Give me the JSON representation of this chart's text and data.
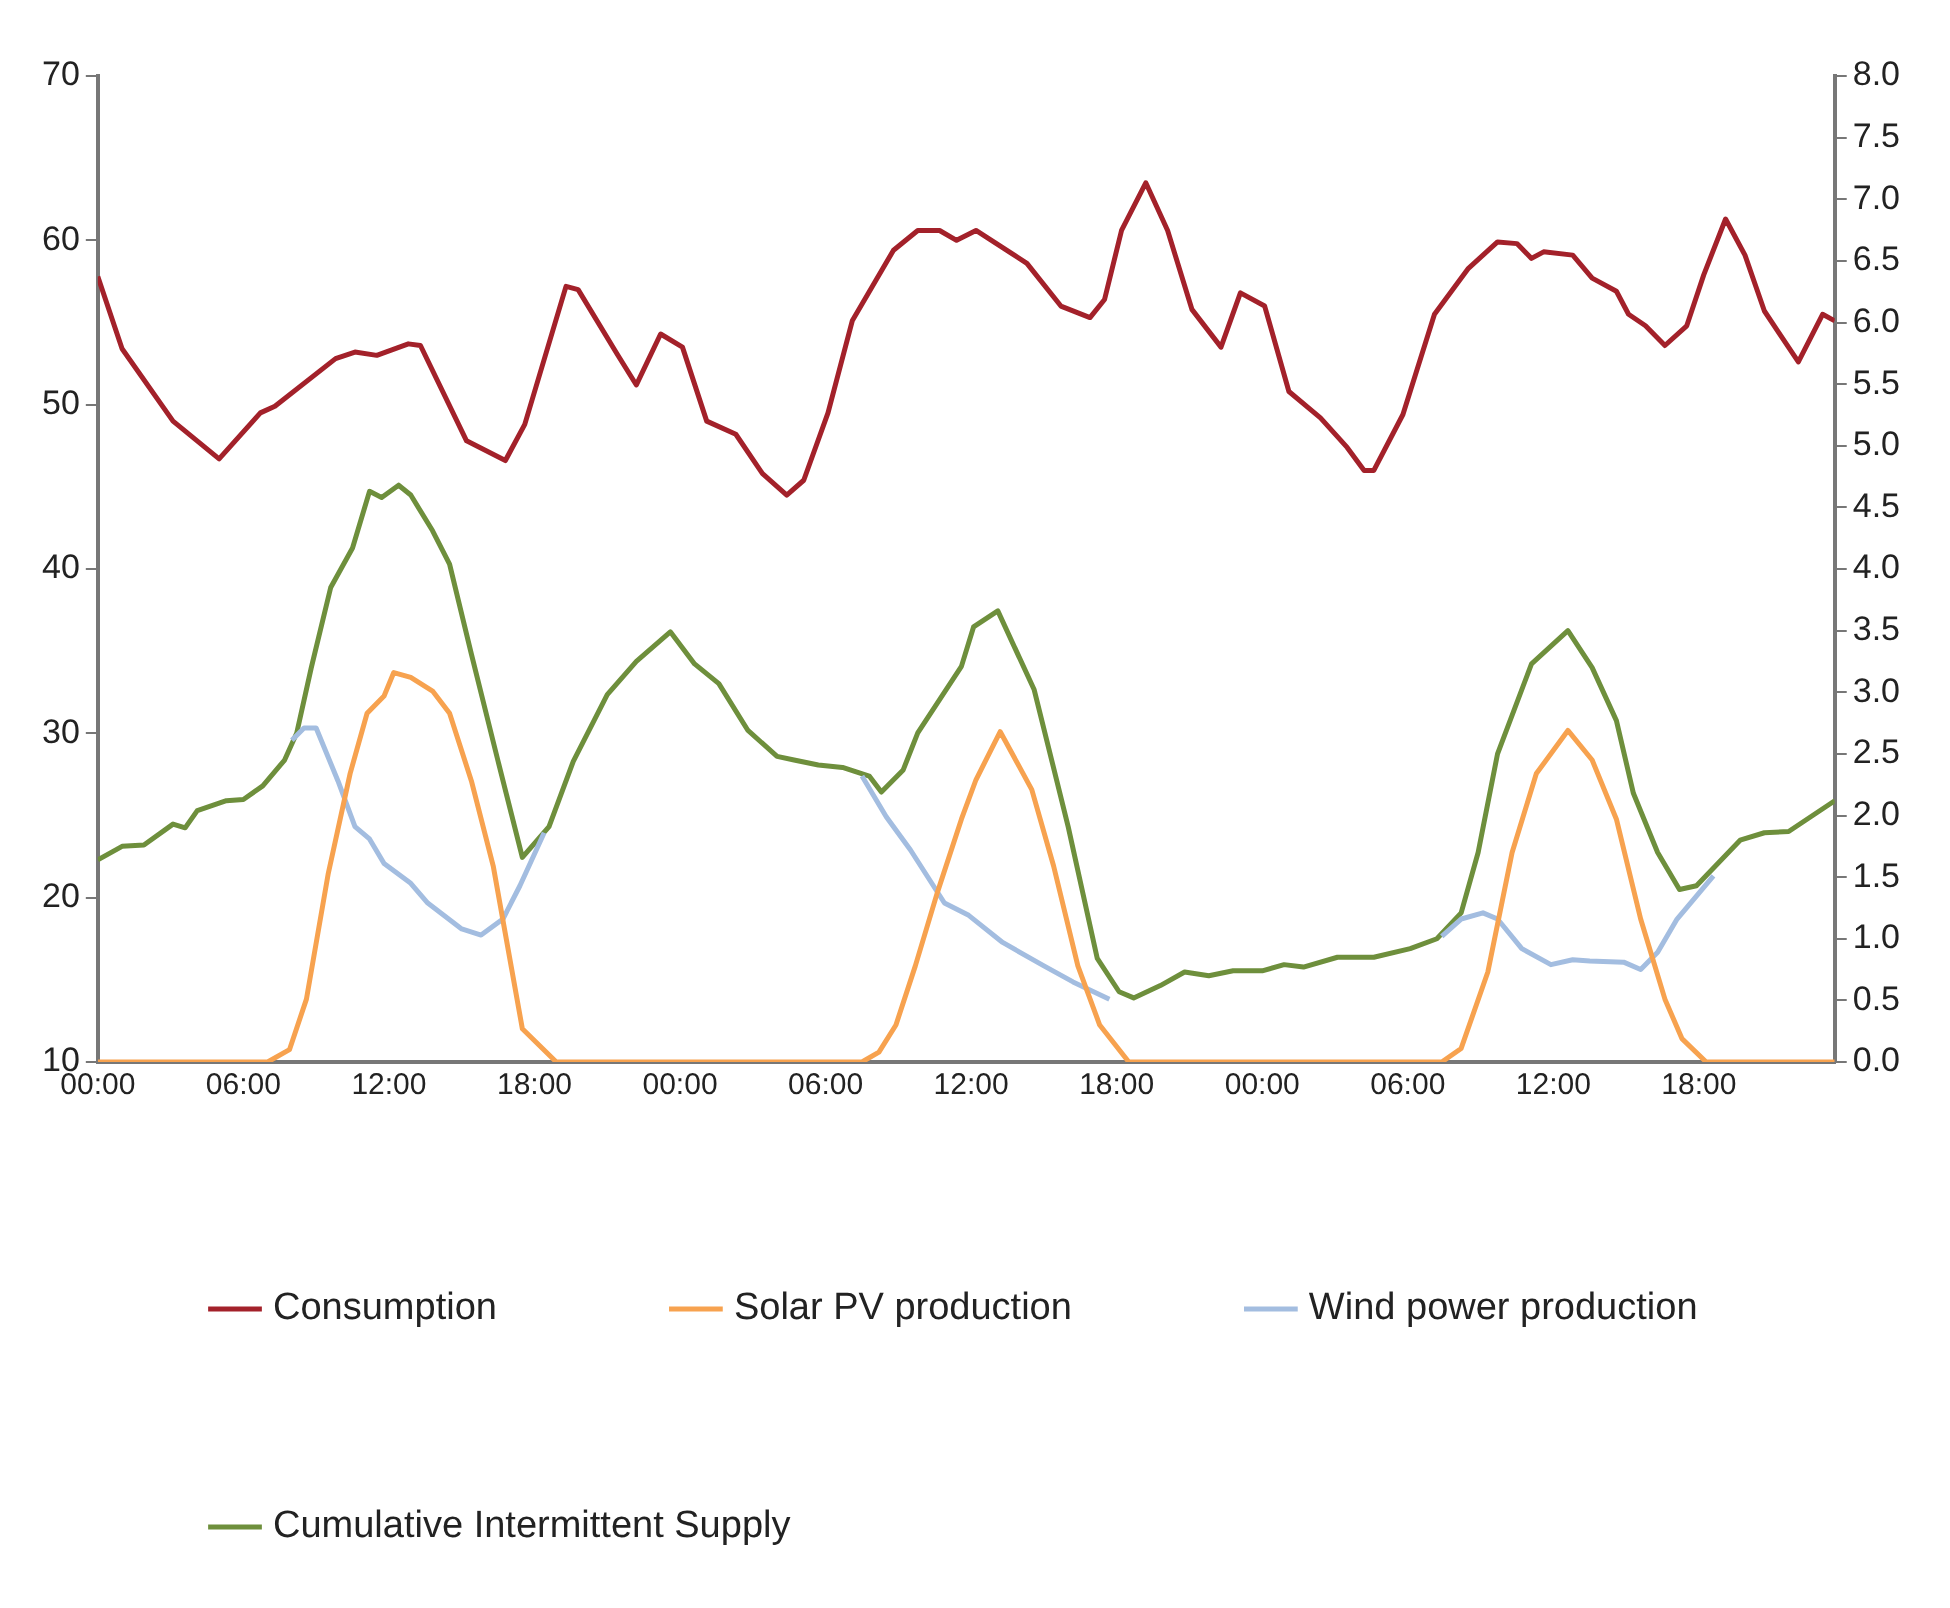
{
  "chart_data": {
    "type": "line",
    "legend": "bottom left",
    "marker": "none",
    "line_style": "solid",
    "grid": false,
    "xlim": [
      "--01-01T00:00",
      "--01-03T23:36"
    ],
    "xticks": [
      {
        "value": "--01-01T00:00",
        "label": "00:00"
      },
      {
        "value": "--01-01T06:00",
        "label": "06:00"
      },
      {
        "value": "--01-01T12:00",
        "label": "12:00"
      },
      {
        "value": "--01-01T18:00",
        "label": "18:00"
      },
      {
        "value": "--01-02T00:00",
        "label": "00:00"
      },
      {
        "value": "--01-02T06:00",
        "label": "06:00"
      },
      {
        "value": "--01-02T12:00",
        "label": "12:00"
      },
      {
        "value": "--01-02T18:00",
        "label": "18:00"
      },
      {
        "value": "--01-03T00:00",
        "label": "00:00"
      },
      {
        "value": "--01-03T06:00",
        "label": "06:00"
      },
      {
        "value": "--01-03T12:00",
        "label": "12:00"
      },
      {
        "value": "--01-03T18:00",
        "label": "18:00"
      }
    ],
    "ylim": [
      10,
      70
    ],
    "yticks": [
      10,
      20,
      30,
      40,
      50,
      60,
      70
    ],
    "y2lim": [
      0,
      8
    ],
    "y2ticks": [
      {
        "value": 0,
        "label": "0.0"
      },
      {
        "value": 0.5,
        "label": "0.5"
      },
      {
        "value": 1,
        "label": "1.0"
      },
      {
        "value": 1.5,
        "label": "1.5"
      },
      {
        "value": 2,
        "label": "2.0"
      },
      {
        "value": 2.5,
        "label": "2.5"
      },
      {
        "value": 3,
        "label": "3.0"
      },
      {
        "value": 3.5,
        "label": "3.5"
      },
      {
        "value": 4,
        "label": "4.0"
      },
      {
        "value": 4.5,
        "label": "4.5"
      },
      {
        "value": 5,
        "label": "5.0"
      },
      {
        "value": 5.5,
        "label": "5.5"
      },
      {
        "value": 6,
        "label": "6.0"
      },
      {
        "value": 6.5,
        "label": "6.5"
      },
      {
        "value": 7,
        "label": "7.0"
      },
      {
        "value": 7.5,
        "label": "7.5"
      },
      {
        "value": 8,
        "label": "8.0"
      }
    ],
    "series": [
      {
        "name": "Consumption",
        "color": "#a3212a",
        "x": [
          "--01-01T00:00",
          "--01-01T01:00",
          "--01-01T03:06",
          "--01-01T05:00",
          "--01-01T06:42",
          "--01-01T07:18",
          "--01-01T09:48",
          "--01-01T10:36",
          "--01-01T11:30",
          "--01-01T12:48",
          "--01-01T13:18",
          "--01-01T15:12",
          "--01-01T16:48",
          "--01-01T17:36",
          "--01-01T19:18",
          "--01-01T19:48",
          "--01-01T21:24",
          "--01-01T22:12",
          "--01-01T23:12",
          "--01-02T00:06",
          "--01-02T01:06",
          "--01-02T02:18",
          "--01-02T03:24",
          "--01-02T04:24",
          "--01-02T05:06",
          "--01-02T06:06",
          "--01-02T07:06",
          "--01-02T08:48",
          "--01-02T09:48",
          "--01-02T10:42",
          "--01-02T11:24",
          "--01-02T12:12",
          "--01-02T14:18",
          "--01-02T15:42",
          "--01-02T16:54",
          "--01-02T17:30",
          "--01-02T18:12",
          "--01-02T19:12",
          "--01-02T20:06",
          "--01-02T21:06",
          "--01-02T22:18",
          "--01-02T23:06",
          "--01-03T00:06",
          "--01-03T01:06",
          "--01-03T02:24",
          "--01-03T03:30",
          "--01-03T04:12",
          "--01-03T04:36",
          "--01-03T05:48",
          "--01-03T07:06",
          "--01-03T08:30",
          "--01-03T09:42",
          "--01-03T10:30",
          "--01-03T11:06",
          "--01-03T11:36",
          "--01-03T12:48",
          "--01-03T13:36",
          "--01-03T14:36",
          "--01-03T15:06",
          "--01-03T15:48",
          "--01-03T16:36",
          "--01-03T17:30",
          "--01-03T18:12",
          "--01-03T19:06",
          "--01-03T19:54",
          "--01-03T20:42",
          "--01-03T22:06",
          "--01-03T23:06",
          "--01-03T23:36"
        ],
        "values": [
          57.8,
          53.4,
          49.0,
          46.7,
          49.5,
          49.9,
          52.8,
          53.2,
          53.0,
          53.7,
          53.6,
          47.8,
          46.6,
          48.8,
          57.2,
          57.0,
          53.1,
          51.2,
          54.3,
          53.5,
          49.0,
          48.2,
          45.8,
          44.5,
          45.4,
          49.5,
          55.1,
          59.4,
          60.6,
          60.6,
          60.0,
          60.6,
          58.6,
          56.0,
          55.3,
          56.4,
          60.6,
          63.5,
          60.6,
          55.8,
          53.5,
          56.8,
          56.0,
          50.8,
          49.2,
          47.4,
          46.0,
          46.0,
          49.4,
          55.5,
          58.3,
          59.9,
          59.8,
          58.9,
          59.3,
          59.1,
          57.7,
          56.9,
          55.5,
          54.8,
          53.6,
          54.8,
          57.9,
          61.3,
          59.1,
          55.7,
          52.6,
          55.5,
          55.1
        ]
      },
      {
        "name": "Solar PV production",
        "color": "#f7a24f",
        "axis": "y2",
        "x": [
          "--01-01T00:00",
          "--01-01T07:00",
          "--01-01T07:54",
          "--01-01T08:36",
          "--01-01T09:30",
          "--01-01T10:24",
          "--01-01T11:06",
          "--01-01T11:48",
          "--01-01T12:12",
          "--01-01T12:54",
          "--01-01T13:48",
          "--01-01T14:30",
          "--01-01T15:24",
          "--01-01T16:18",
          "--01-01T17:00",
          "--01-01T17:30",
          "--01-01T18:54",
          "--01-02T07:30",
          "--01-02T08:12",
          "--01-02T08:54",
          "--01-02T09:42",
          "--01-02T10:36",
          "--01-02T11:36",
          "--01-02T12:12",
          "--01-02T13:12",
          "--01-02T14:30",
          "--01-02T15:24",
          "--01-02T16:24",
          "--01-02T17:18",
          "--01-02T18:30",
          "--01-03T07:24",
          "--01-03T08:12",
          "--01-03T09:18",
          "--01-03T10:18",
          "--01-03T11:18",
          "--01-03T12:36",
          "--01-03T13:36",
          "--01-03T14:36",
          "--01-03T15:36",
          "--01-03T16:36",
          "--01-03T17:18",
          "--01-03T18:18",
          "--01-03T23:36"
        ],
        "values": [
          0,
          0,
          0.1,
          0.51,
          1.53,
          2.34,
          2.83,
          2.97,
          3.16,
          3.12,
          3.01,
          2.83,
          2.28,
          1.59,
          0.82,
          0.27,
          0,
          0,
          0.08,
          0.3,
          0.78,
          1.37,
          1.97,
          2.29,
          2.68,
          2.21,
          1.59,
          0.78,
          0.3,
          0,
          0,
          0.11,
          0.73,
          1.7,
          2.34,
          2.69,
          2.45,
          1.97,
          1.16,
          0.51,
          0.19,
          0,
          0
        ]
      },
      {
        "name": "Wind power production",
        "color": "#a3bde0",
        "axis": "y2",
        "x": [
          "--01-01T08:00",
          "--01-01T08:30",
          "--01-01T09:00",
          "--01-01T09:54",
          "--01-01T10:36",
          "--01-01T11:12",
          "--01-01T11:48",
          "--01-01T12:54",
          "--01-01T13:36",
          "--01-01T15:00",
          "--01-01T15:48",
          "--01-01T16:42",
          "--01-01T17:24",
          "--01-01T18:24",
          "--01-01T18:36",
          "--01-02T07:30",
          "--01-02T08:30",
          "--01-02T09:30",
          "--01-02T10:54",
          "--01-02T11:54",
          "--01-02T13:18",
          "--01-02T15:00",
          "--01-02T16:12",
          "--01-02T17:42",
          "--01-02T18:24",
          "--01-03T07:24",
          "--01-03T08:12",
          "--01-03T09:06",
          "--01-03T09:42",
          "--01-03T10:42",
          "--01-03T11:54",
          "--01-03T12:48",
          "--01-03T13:30",
          "--01-03T14:54",
          "--01-03T15:36",
          "--01-03T16:18",
          "--01-03T17:06",
          "--01-03T18:36"
        ],
        "values": [
          2.61,
          2.71,
          2.71,
          2.28,
          1.91,
          1.81,
          1.61,
          1.45,
          1.29,
          1.08,
          1.03,
          1.16,
          1.43,
          1.86,
          null,
          2.32,
          1.99,
          1.72,
          1.29,
          1.19,
          0.97,
          0.78,
          0.65,
          0.51,
          null,
          1.02,
          1.16,
          1.21,
          1.16,
          0.92,
          0.79,
          0.83,
          0.82,
          0.81,
          0.75,
          0.89,
          1.16,
          1.51
        ]
      },
      {
        "name": "Cumulative Intermittent Supply",
        "color": "#6e8f3c",
        "axis": "y2",
        "x": [
          "--01-01T00:00",
          "--01-01T01:00",
          "--01-01T01:54",
          "--01-01T03:06",
          "--01-01T03:36",
          "--01-01T04:06",
          "--01-01T05:18",
          "--01-01T06:00",
          "--01-01T06:48",
          "--01-01T07:42",
          "--01-01T08:12",
          "--01-01T08:48",
          "--01-01T09:36",
          "--01-01T10:30",
          "--01-01T11:12",
          "--01-01T11:42",
          "--01-01T12:24",
          "--01-01T12:54",
          "--01-01T13:48",
          "--01-01T14:30",
          "--01-01T15:24",
          "--01-01T16:30",
          "--01-01T17:30",
          "--01-01T18:36",
          "--01-01T19:36",
          "--01-01T21:00",
          "--01-01T22:12",
          "--01-01T23:36",
          "--01-02T00:36",
          "--01-02T01:36",
          "--01-02T02:48",
          "--01-02T04:00",
          "--01-02T04:42",
          "--01-02T05:42",
          "--01-02T06:42",
          "--01-02T07:48",
          "--01-02T08:18",
          "--01-02T09:12",
          "--01-02T09:48",
          "--01-02T11:36",
          "--01-02T12:06",
          "--01-02T13:06",
          "--01-02T14:36",
          "--01-02T16:00",
          "--01-02T17:12",
          "--01-02T18:06",
          "--01-02T18:42",
          "--01-02T19:48",
          "--01-02T20:48",
          "--01-02T21:48",
          "--01-02T22:48",
          "--01-03T00:00",
          "--01-03T00:54",
          "--01-03T01:42",
          "--01-03T03:06",
          "--01-03T04:36",
          "--01-03T06:06",
          "--01-03T07:12",
          "--01-03T08:12",
          "--01-03T08:54",
          "--01-03T09:42",
          "--01-03T11:06",
          "--01-03T12:36",
          "--01-03T13:36",
          "--01-03T14:36",
          "--01-03T15:18",
          "--01-03T16:18",
          "--01-03T17:12",
          "--01-03T17:54",
          "--01-03T19:42",
          "--01-03T20:42",
          "--01-03T21:42",
          "--01-03T23:36"
        ],
        "values": [
          1.64,
          1.75,
          1.76,
          1.93,
          1.9,
          2.04,
          2.12,
          2.13,
          2.24,
          2.45,
          2.67,
          3.2,
          3.85,
          4.17,
          4.63,
          4.58,
          4.68,
          4.6,
          4.31,
          4.04,
          3.31,
          2.44,
          1.66,
          1.91,
          2.44,
          2.98,
          3.25,
          3.49,
          3.23,
          3.07,
          2.69,
          2.48,
          2.45,
          2.41,
          2.39,
          2.32,
          2.19,
          2.37,
          2.67,
          3.21,
          3.53,
          3.66,
          3.02,
          1.91,
          0.84,
          0.57,
          0.52,
          0.62,
          0.73,
          0.7,
          0.74,
          0.74,
          0.79,
          0.77,
          0.85,
          0.85,
          0.92,
          1.0,
          1.21,
          1.7,
          2.5,
          3.23,
          3.5,
          3.2,
          2.77,
          2.18,
          1.7,
          1.4,
          1.43,
          1.8,
          1.86,
          1.87,
          2.12
        ]
      }
    ]
  }
}
